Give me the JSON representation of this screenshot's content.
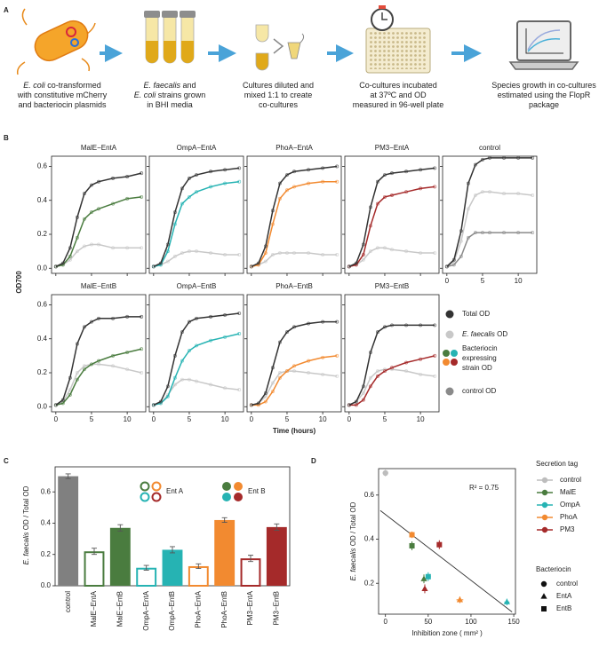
{
  "diagram": {
    "label": "A",
    "steps": [
      {
        "lines": [
          [
            {
              "text": "E. coli",
              "italic": true
            },
            {
              "text": " co-transformed"
            }
          ],
          [
            {
              "text": "with constitutive mCherry"
            }
          ],
          [
            {
              "text": "and bacteriocin plasmids"
            }
          ]
        ]
      },
      {
        "lines": [
          [
            {
              "text": "E. faecalis",
              "italic": true
            },
            {
              "text": " and"
            }
          ],
          [
            {
              "text": "E. coli",
              "italic": true
            },
            {
              "text": " strains grown"
            }
          ],
          [
            {
              "text": "in BHI media"
            }
          ]
        ]
      },
      {
        "lines": [
          [
            {
              "text": "Cultures diluted and"
            }
          ],
          [
            {
              "text": "mixed 1:1 to create"
            }
          ],
          [
            {
              "text": "co-cultures"
            }
          ]
        ]
      },
      {
        "lines": [
          [
            {
              "text": "Co-cultures incubated"
            }
          ],
          [
            {
              "text": "at 37ºC and OD"
            }
          ],
          [
            {
              "text": "measured in 96-well plate"
            }
          ]
        ]
      },
      {
        "lines": [
          [
            {
              "text": "Species growth in co-cultures"
            }
          ],
          [
            {
              "text": "estimated using the FlopR"
            }
          ],
          [
            {
              "text": "package"
            }
          ]
        ]
      }
    ]
  },
  "panel_b": {
    "label": "B",
    "y_label": "OD700",
    "x_label": "Time (hours)",
    "legend": [
      {
        "lines": [
          [
            {
              "text": "Total OD"
            }
          ]
        ],
        "colors": [
          "#333333"
        ]
      },
      {
        "lines": [
          [
            {
              "text": "E. faecalis",
              "italic": true
            },
            {
              "text": " OD"
            }
          ]
        ],
        "colors": [
          "#c8c8c8"
        ]
      },
      {
        "lines": [
          [
            {
              "text": "Bacteriocin"
            }
          ],
          [
            {
              "text": "expressing"
            }
          ],
          [
            {
              "text": "strain OD"
            }
          ]
        ],
        "colors": [
          "#4a7c3f",
          "#26b3b3",
          "#f28a30",
          "#a52a2a"
        ]
      },
      {
        "lines": [
          [
            {
              "text": "control OD"
            }
          ]
        ],
        "colors": [
          "#8a8a8a"
        ]
      }
    ]
  },
  "chart_data": [
    {
      "type": "line",
      "title": "MalE−EntA",
      "x": [
        0,
        1,
        2,
        3,
        4,
        5,
        6,
        8,
        10,
        12
      ],
      "xlim": [
        -0.6,
        12.6
      ],
      "ylim": [
        -0.03,
        0.66
      ],
      "xticks": [
        0,
        5,
        10
      ],
      "yticks": [
        {
          "value": 0,
          "label": "0.0"
        },
        0.2,
        0.4,
        0.6
      ],
      "series": [
        {
          "color": "#c8c8c8",
          "values": [
            0.01,
            0.02,
            0.05,
            0.1,
            0.13,
            0.14,
            0.14,
            0.12,
            0.12,
            0.12
          ]
        },
        {
          "color": "#4a7c3f",
          "values": [
            0.01,
            0.02,
            0.07,
            0.18,
            0.29,
            0.33,
            0.35,
            0.38,
            0.41,
            0.42
          ]
        },
        {
          "color": "#333333",
          "values": [
            0.01,
            0.03,
            0.12,
            0.3,
            0.44,
            0.49,
            0.51,
            0.53,
            0.54,
            0.56
          ]
        }
      ]
    },
    {
      "type": "line",
      "title": "OmpA−EntA",
      "x": [
        0,
        1,
        2,
        3,
        4,
        5,
        6,
        8,
        10,
        12
      ],
      "xlim": [
        -0.6,
        12.6
      ],
      "ylim": [
        -0.03,
        0.66
      ],
      "xticks": [
        0,
        5,
        10
      ],
      "yticks": [
        {
          "value": 0,
          "label": "0.0"
        },
        0.2,
        0.4,
        0.6
      ],
      "series": [
        {
          "color": "#c8c8c8",
          "values": [
            0.01,
            0.02,
            0.04,
            0.07,
            0.09,
            0.1,
            0.1,
            0.09,
            0.08,
            0.08
          ]
        },
        {
          "color": "#26b3b3",
          "values": [
            0.01,
            0.02,
            0.1,
            0.26,
            0.38,
            0.42,
            0.45,
            0.48,
            0.5,
            0.51
          ]
        },
        {
          "color": "#333333",
          "values": [
            0.01,
            0.03,
            0.14,
            0.33,
            0.47,
            0.53,
            0.55,
            0.57,
            0.58,
            0.59
          ]
        }
      ]
    },
    {
      "type": "line",
      "title": "PhoA−EntA",
      "x": [
        0,
        1,
        2,
        3,
        4,
        5,
        6,
        8,
        10,
        12
      ],
      "xlim": [
        -0.6,
        12.6
      ],
      "ylim": [
        -0.03,
        0.66
      ],
      "xticks": [
        0,
        5,
        10
      ],
      "yticks": [
        {
          "value": 0,
          "label": "0.0"
        },
        0.2,
        0.4,
        0.6
      ],
      "series": [
        {
          "color": "#c8c8c8",
          "values": [
            0.01,
            0.02,
            0.04,
            0.08,
            0.09,
            0.09,
            0.09,
            0.09,
            0.08,
            0.08
          ]
        },
        {
          "color": "#f28a30",
          "values": [
            0.01,
            0.02,
            0.09,
            0.26,
            0.41,
            0.46,
            0.48,
            0.5,
            0.51,
            0.51
          ]
        },
        {
          "color": "#333333",
          "values": [
            0.01,
            0.03,
            0.13,
            0.34,
            0.5,
            0.55,
            0.57,
            0.58,
            0.59,
            0.6
          ]
        }
      ]
    },
    {
      "type": "line",
      "title": "PM3−EntA",
      "x": [
        0,
        1,
        2,
        3,
        4,
        5,
        6,
        8,
        10,
        12
      ],
      "xlim": [
        -0.6,
        12.6
      ],
      "ylim": [
        -0.03,
        0.66
      ],
      "xticks": [
        0,
        5,
        10
      ],
      "yticks": [
        {
          "value": 0,
          "label": "0.0"
        },
        0.2,
        0.4,
        0.6
      ],
      "series": [
        {
          "color": "#c8c8c8",
          "values": [
            0.01,
            0.02,
            0.05,
            0.1,
            0.12,
            0.12,
            0.11,
            0.1,
            0.09,
            0.09
          ]
        },
        {
          "color": "#a52a2a",
          "values": [
            0.01,
            0.02,
            0.08,
            0.25,
            0.38,
            0.42,
            0.43,
            0.45,
            0.47,
            0.48
          ]
        },
        {
          "color": "#333333",
          "values": [
            0.01,
            0.03,
            0.14,
            0.36,
            0.51,
            0.55,
            0.56,
            0.57,
            0.58,
            0.59
          ]
        }
      ]
    },
    {
      "type": "line",
      "title": "control",
      "x": [
        0,
        1,
        2,
        3,
        4,
        5,
        6,
        8,
        10,
        12
      ],
      "xlim": [
        -0.6,
        12.6
      ],
      "ylim": [
        -0.03,
        0.66
      ],
      "xticks": [
        0,
        5,
        10
      ],
      "yticks": [
        {
          "value": 0,
          "label": "0.0"
        },
        0.2,
        0.4,
        0.6
      ],
      "series": [
        {
          "color": "#c8c8c8",
          "values": [
            0.01,
            0.04,
            0.16,
            0.35,
            0.43,
            0.45,
            0.45,
            0.44,
            0.44,
            0.43
          ]
        },
        {
          "color": "#8a8a8a",
          "values": [
            0.01,
            0.02,
            0.07,
            0.18,
            0.21,
            0.21,
            0.21,
            0.21,
            0.21,
            0.21
          ]
        },
        {
          "color": "#333333",
          "values": [
            0.01,
            0.05,
            0.22,
            0.5,
            0.61,
            0.64,
            0.65,
            0.65,
            0.65,
            0.65
          ]
        }
      ]
    },
    {
      "type": "line",
      "title": "MalE−EntB",
      "x": [
        0,
        1,
        2,
        3,
        4,
        5,
        6,
        8,
        10,
        12
      ],
      "xlim": [
        -0.6,
        12.6
      ],
      "ylim": [
        -0.03,
        0.66
      ],
      "xticks": [
        0,
        5,
        10
      ],
      "yticks": [
        {
          "value": 0,
          "label": "0.0"
        },
        0.2,
        0.4,
        0.6
      ],
      "series": [
        {
          "color": "#c8c8c8",
          "values": [
            0.01,
            0.03,
            0.1,
            0.2,
            0.24,
            0.25,
            0.25,
            0.24,
            0.22,
            0.2
          ]
        },
        {
          "color": "#4a7c3f",
          "values": [
            0.01,
            0.02,
            0.07,
            0.16,
            0.22,
            0.25,
            0.27,
            0.3,
            0.32,
            0.34
          ]
        },
        {
          "color": "#333333",
          "values": [
            0.01,
            0.04,
            0.17,
            0.37,
            0.47,
            0.5,
            0.52,
            0.52,
            0.53,
            0.53
          ]
        }
      ]
    },
    {
      "type": "line",
      "title": "OmpA−EntB",
      "x": [
        0,
        1,
        2,
        3,
        4,
        5,
        6,
        8,
        10,
        12
      ],
      "xlim": [
        -0.6,
        12.6
      ],
      "ylim": [
        -0.03,
        0.66
      ],
      "xticks": [
        0,
        5,
        10
      ],
      "yticks": [
        {
          "value": 0,
          "label": "0.0"
        },
        0.2,
        0.4,
        0.6
      ],
      "series": [
        {
          "color": "#c8c8c8",
          "values": [
            0.01,
            0.02,
            0.07,
            0.13,
            0.16,
            0.16,
            0.15,
            0.13,
            0.11,
            0.1
          ]
        },
        {
          "color": "#26b3b3",
          "values": [
            0.01,
            0.02,
            0.06,
            0.17,
            0.27,
            0.33,
            0.36,
            0.39,
            0.41,
            0.43
          ]
        },
        {
          "color": "#333333",
          "values": [
            0.01,
            0.03,
            0.12,
            0.3,
            0.44,
            0.5,
            0.52,
            0.53,
            0.54,
            0.55
          ]
        }
      ]
    },
    {
      "type": "line",
      "title": "PhoA−EntB",
      "x": [
        0,
        1,
        2,
        3,
        4,
        5,
        6,
        8,
        10,
        12
      ],
      "xlim": [
        -0.6,
        12.6
      ],
      "ylim": [
        -0.03,
        0.66
      ],
      "xticks": [
        0,
        5,
        10
      ],
      "yticks": [
        {
          "value": 0,
          "label": "0.0"
        },
        0.2,
        0.4,
        0.6
      ],
      "series": [
        {
          "color": "#c8c8c8",
          "values": [
            0.01,
            0.02,
            0.06,
            0.14,
            0.2,
            0.21,
            0.21,
            0.2,
            0.19,
            0.18
          ]
        },
        {
          "color": "#f28a30",
          "values": [
            0.01,
            0.01,
            0.03,
            0.09,
            0.17,
            0.21,
            0.24,
            0.27,
            0.29,
            0.3
          ]
        },
        {
          "color": "#333333",
          "values": [
            0.01,
            0.02,
            0.08,
            0.23,
            0.38,
            0.44,
            0.47,
            0.49,
            0.5,
            0.5
          ]
        }
      ]
    },
    {
      "type": "line",
      "title": "PM3−EntB",
      "x": [
        0,
        1,
        2,
        3,
        4,
        5,
        6,
        8,
        10,
        12
      ],
      "xlim": [
        -0.6,
        12.6
      ],
      "ylim": [
        -0.03,
        0.66
      ],
      "xticks": [
        0,
        5,
        10
      ],
      "yticks": [
        {
          "value": 0,
          "label": "0.0"
        },
        0.2,
        0.4,
        0.6
      ],
      "series": [
        {
          "color": "#c8c8c8",
          "values": [
            0.01,
            0.03,
            0.08,
            0.17,
            0.21,
            0.22,
            0.22,
            0.21,
            0.19,
            0.18
          ]
        },
        {
          "color": "#a52a2a",
          "values": [
            0.01,
            0.01,
            0.04,
            0.12,
            0.18,
            0.21,
            0.23,
            0.26,
            0.28,
            0.3
          ]
        },
        {
          "color": "#333333",
          "values": [
            0.01,
            0.03,
            0.12,
            0.32,
            0.44,
            0.47,
            0.48,
            0.48,
            0.48,
            0.48
          ]
        }
      ]
    },
    {
      "type": "bar",
      "panel_label": "C",
      "y_label": [
        [
          {
            "text": "E. faecalis",
            "italic": true
          },
          {
            "text": " OD / Total OD"
          }
        ]
      ],
      "categories": [
        "control",
        "MalE−EntA",
        "MalE−EntB",
        "OmpA−EntA",
        "OmpA−EntB",
        "PhoA−EntA",
        "PhoA−EntB",
        "PM3−EntA",
        "PM3−EntB"
      ],
      "values": [
        0.7,
        0.22,
        0.37,
        0.115,
        0.23,
        0.125,
        0.42,
        0.175,
        0.375
      ],
      "errors": [
        0.015,
        0.02,
        0.02,
        0.015,
        0.02,
        0.015,
        0.015,
        0.02,
        0.02
      ],
      "colors": [
        "#808080",
        "#4a7c3f",
        "#4a7c3f",
        "#26b3b3",
        "#26b3b3",
        "#f28a30",
        "#f28a30",
        "#a52a2a",
        "#a52a2a"
      ],
      "filled": [
        true,
        false,
        true,
        false,
        true,
        false,
        true,
        false,
        true
      ],
      "ylim": [
        0,
        0.76
      ],
      "yticks": [
        {
          "value": 0,
          "label": "0.0"
        },
        0.2,
        0.4,
        0.6
      ],
      "legend": [
        {
          "label": "Ent A",
          "filled": false,
          "colors": [
            "#4a7c3f",
            "#f28a30",
            "#26b3b3",
            "#a52a2a"
          ]
        },
        {
          "label": "Ent B",
          "filled": true,
          "colors": [
            "#4a7c3f",
            "#f28a30",
            "#26b3b3",
            "#a52a2a"
          ]
        }
      ]
    },
    {
      "type": "scatter",
      "panel_label": "D",
      "x_label": "Inhibition zone ( mm² )",
      "y_label": [
        [
          {
            "text": "E. faecalis",
            "italic": true
          },
          {
            "text": " OD / Total OD"
          }
        ]
      ],
      "annotation": "R² = 0.75",
      "xlim": [
        -8,
        152
      ],
      "ylim": [
        0.06,
        0.72
      ],
      "xticks": [
        0,
        50,
        100,
        150
      ],
      "yticks": [
        0.2,
        0.4,
        0.6
      ],
      "fit_line": {
        "x": [
          -6,
          148
        ],
        "y": [
          0.53,
          0.07
        ]
      },
      "legend_title": "Secretion tag",
      "series": [
        {
          "name": "control",
          "color": "#bdbdbd",
          "x": [
            0
          ],
          "y": [
            0.7
          ],
          "xerr": [
            0
          ],
          "yerr": [
            0.015
          ],
          "shapes": [
            "circle"
          ]
        },
        {
          "name": "MalE",
          "color": "#4a7c3f",
          "x": [
            45,
            31
          ],
          "y": [
            0.22,
            0.37
          ],
          "xerr": [
            2,
            2
          ],
          "yerr": [
            0.02,
            0.02
          ],
          "shapes": [
            "triangle",
            "square"
          ]
        },
        {
          "name": "OmpA",
          "color": "#26b3b3",
          "x": [
            142,
            50
          ],
          "y": [
            0.115,
            0.23
          ],
          "xerr": [
            3,
            3
          ],
          "yerr": [
            0.015,
            0.02
          ],
          "shapes": [
            "triangle",
            "square"
          ]
        },
        {
          "name": "PhoA",
          "color": "#f28a30",
          "x": [
            87,
            31
          ],
          "y": [
            0.125,
            0.42
          ],
          "xerr": [
            4,
            2
          ],
          "yerr": [
            0.015,
            0.015
          ],
          "shapes": [
            "triangle",
            "square"
          ]
        },
        {
          "name": "PM3",
          "color": "#a52a2a",
          "x": [
            46,
            63
          ],
          "y": [
            0.175,
            0.375
          ],
          "xerr": [
            2,
            2
          ],
          "yerr": [
            0.02,
            0.02
          ],
          "shapes": [
            "triangle",
            "square"
          ]
        }
      ],
      "shape_legend": {
        "title": "Bacteriocin",
        "entries": [
          {
            "label": "control",
            "shape": "circle"
          },
          {
            "label": "EntA",
            "shape": "triangle"
          },
          {
            "label": "EntB",
            "shape": "square"
          }
        ]
      }
    }
  ]
}
